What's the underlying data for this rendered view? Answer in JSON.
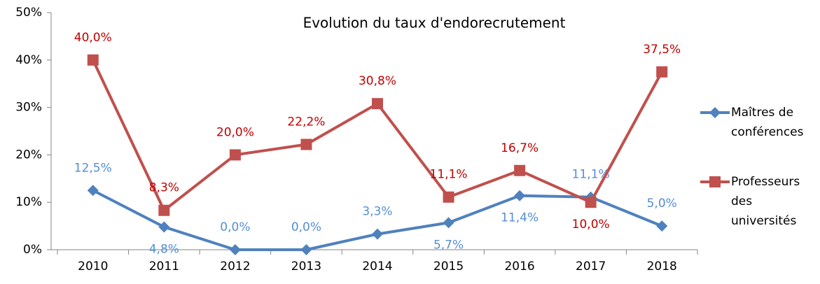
{
  "chart_data": {
    "type": "line",
    "title": "Evolution du taux d'endorecrutement",
    "categories": [
      "2010",
      "2011",
      "2012",
      "2013",
      "2014",
      "2015",
      "2016",
      "2017",
      "2018"
    ],
    "series": [
      {
        "name": "Maîtres de conférences",
        "color": "#4f81bd",
        "marker": "diamond",
        "values": [
          12.5,
          4.8,
          0.0,
          0.0,
          3.3,
          5.7,
          11.4,
          11.1,
          5.0
        ],
        "value_labels": [
          "12,5%",
          "4,8%",
          "0,0%",
          "0,0%",
          "3,3%",
          "5,7%",
          "11,4%",
          "11,1%",
          "5,0%"
        ]
      },
      {
        "name": "Professeurs des universités",
        "color": "#c0504d",
        "marker": "square",
        "values": [
          40.0,
          8.3,
          20.0,
          22.2,
          30.8,
          11.1,
          16.7,
          10.0,
          37.5
        ],
        "value_labels": [
          "40,0%",
          "8,3%",
          "20,0%",
          "22,2%",
          "30,8%",
          "11,1%",
          "16,7%",
          "10,0%",
          "37,5%"
        ]
      }
    ],
    "ylim": [
      0,
      50
    ],
    "yticks": [
      {
        "value": 0,
        "label": "0%"
      },
      {
        "value": 10,
        "label": "10%"
      },
      {
        "value": 20,
        "label": "20%"
      },
      {
        "value": 30,
        "label": "30%"
      },
      {
        "value": 40,
        "label": "40%"
      },
      {
        "value": 50,
        "label": "50%"
      }
    ],
    "grid": false,
    "legend": "right"
  }
}
